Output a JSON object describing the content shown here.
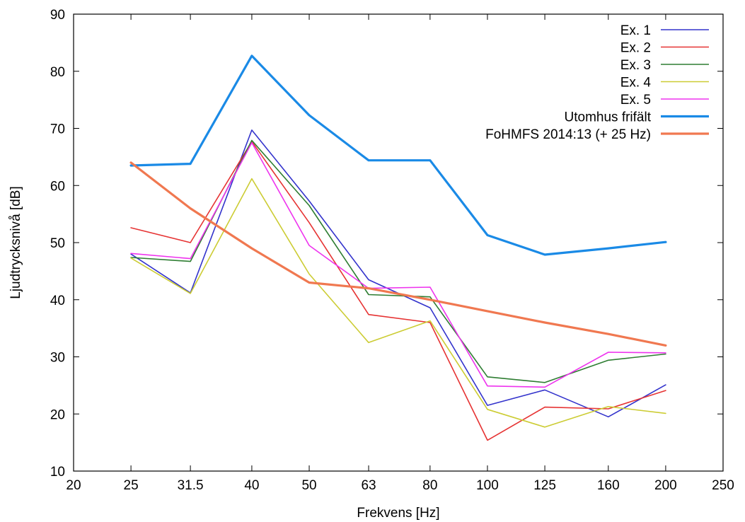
{
  "chart_data": {
    "type": "line",
    "xlabel": "Frekvens [Hz]",
    "ylabel": "Ljudtrycksnivå [dB]",
    "x_scale": "log",
    "xlim": [
      20,
      250
    ],
    "ylim": [
      10,
      90
    ],
    "x_ticks": [
      20,
      25,
      31.5,
      40,
      50,
      63,
      80,
      100,
      125,
      160,
      200,
      250
    ],
    "x_tick_labels": [
      "20",
      "25",
      "31.5",
      "40",
      "50",
      "63",
      "80",
      "100",
      "125",
      "160",
      "200",
      "250"
    ],
    "y_ticks": [
      10,
      20,
      30,
      40,
      50,
      60,
      70,
      80,
      90
    ],
    "y_tick_labels": [
      "10",
      "20",
      "30",
      "40",
      "50",
      "60",
      "70",
      "80",
      "90"
    ],
    "grid": false,
    "legend_position": "top-right",
    "series": [
      {
        "name": "Ex. 1",
        "color": "#3333cc",
        "x": [
          25,
          31.5,
          40,
          50,
          63,
          80,
          100,
          125,
          160,
          200
        ],
        "values": [
          48.0,
          41.2,
          69.7,
          57.3,
          43.5,
          38.6,
          21.5,
          24.2,
          19.5,
          25.1
        ]
      },
      {
        "name": "Ex. 2",
        "color": "#e63333",
        "x": [
          25,
          31.5,
          40,
          50,
          63,
          80,
          100,
          125,
          160,
          200
        ],
        "values": [
          52.6,
          50.0,
          67.7,
          53.5,
          37.4,
          36.0,
          15.4,
          21.2,
          20.9,
          24.1
        ]
      },
      {
        "name": "Ex. 3",
        "color": "#2e7d32",
        "x": [
          25,
          31.5,
          40,
          50,
          63,
          80,
          100,
          125,
          160,
          200
        ],
        "values": [
          47.4,
          46.7,
          67.9,
          56.5,
          40.9,
          40.5,
          26.5,
          25.5,
          29.4,
          30.5
        ]
      },
      {
        "name": "Ex. 4",
        "color": "#cccc33",
        "x": [
          25,
          31.5,
          40,
          50,
          63,
          80,
          100,
          125,
          160,
          200
        ],
        "values": [
          47.3,
          41.1,
          61.2,
          44.5,
          32.5,
          36.3,
          20.8,
          17.7,
          21.3,
          20.1
        ]
      },
      {
        "name": "Ex. 5",
        "color": "#ee33ee",
        "x": [
          25,
          31.5,
          40,
          50,
          63,
          80,
          100,
          125,
          160,
          200
        ],
        "values": [
          48.1,
          47.2,
          67.5,
          49.5,
          42.0,
          42.2,
          24.9,
          24.7,
          30.8,
          30.7
        ]
      },
      {
        "name": "Utomhus frifält",
        "color": "#1a8ae6",
        "x": [
          25,
          31.5,
          40,
          50,
          63,
          80,
          100,
          125,
          160,
          200
        ],
        "values": [
          63.5,
          63.8,
          82.7,
          72.3,
          64.4,
          64.4,
          51.3,
          47.9,
          49.0,
          50.1
        ]
      },
      {
        "name": "FoHMFS 2014:13 (+ 25 Hz)",
        "color": "#f07850",
        "x": [
          25,
          31.5,
          40,
          50,
          63,
          80,
          100,
          125,
          160,
          200
        ],
        "values": [
          64,
          56,
          49,
          43,
          42,
          40,
          38,
          36,
          34,
          32
        ]
      }
    ]
  }
}
